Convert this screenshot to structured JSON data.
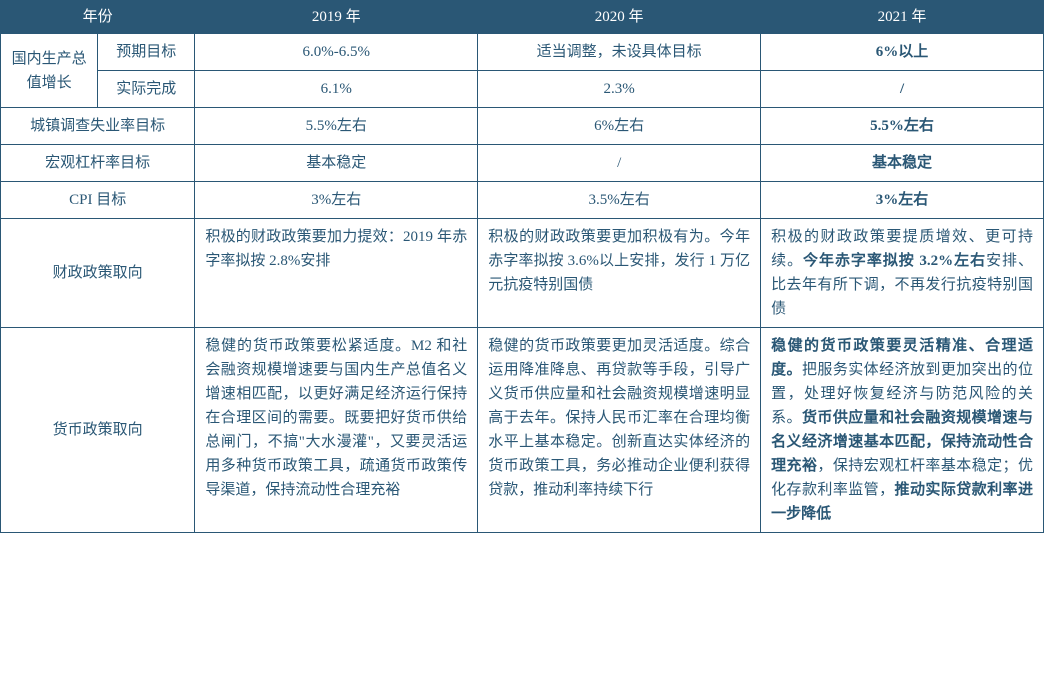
{
  "header": {
    "year_label": "年份",
    "year_2019": "2019 年",
    "year_2020": "2020 年",
    "year_2021": "2021 年"
  },
  "rows": {
    "gdp_label": "国内生产总值增长",
    "gdp_target_label": "预期目标",
    "gdp_actual_label": "实际完成",
    "gdp_target_2019": "6.0%-6.5%",
    "gdp_target_2020": "适当调整，未设具体目标",
    "gdp_target_2021": "6%以上",
    "gdp_actual_2019": "6.1%",
    "gdp_actual_2020": "2.3%",
    "gdp_actual_2021": "/",
    "unemployment_label": "城镇调查失业率目标",
    "unemployment_2019": "5.5%左右",
    "unemployment_2020": "6%左右",
    "unemployment_2021": "5.5%左右",
    "leverage_label": "宏观杠杆率目标",
    "leverage_2019": "基本稳定",
    "leverage_2020": "/",
    "leverage_2021": "基本稳定",
    "cpi_label": "CPI 目标",
    "cpi_2019": "3%左右",
    "cpi_2020": "3.5%左右",
    "cpi_2021": "3%左右",
    "fiscal_label": "财政政策取向",
    "fiscal_2019": "积极的财政政策要加力提效：2019 年赤字率拟按 2.8%安排",
    "fiscal_2020": "积极的财政政策要更加积极有为。今年赤字率拟按 3.6%以上安排，发行 1 万亿元抗疫特别国债",
    "fiscal_2021_p1": "积极的财政政策要提质增效、更可持续。",
    "fiscal_2021_p2": "今年赤字率拟按 3.2%左右",
    "fiscal_2021_p3": "安排、比去年有所下调，不再发行抗疫特别国债",
    "monetary_label": "货币政策取向",
    "monetary_2019": "稳健的货币政策要松紧适度。M2 和社会融资规模增速要与国内生产总值名义增速相匹配，以更好满足经济运行保持在合理区间的需要。既要把好货币供给总闸门，不搞\"大水漫灌\"，又要灵活运用多种货币政策工具，疏通货币政策传导渠道，保持流动性合理充裕",
    "monetary_2020": "稳健的货币政策要更加灵活适度。综合运用降准降息、再贷款等手段，引导广义货币供应量和社会融资规模增速明显高于去年。保持人民币汇率在合理均衡水平上基本稳定。创新直达实体经济的货币政策工具，务必推动企业便利获得贷款，推动利率持续下行",
    "monetary_2021_p1": "稳健的货币政策要灵活精准、合理适度。",
    "monetary_2021_p2": "把服务实体经济放到更加突出的位置，处理好恢复经济与防范风险的关系。",
    "monetary_2021_p3": "货币供应量和社会融资规模增速与名义经济增速基本匹配，保持流动性合理充裕",
    "monetary_2021_p4": "，保持宏观杠杆率基本稳定；优化存款利率监管，",
    "monetary_2021_p5": "推动实际贷款利率进一步降低"
  },
  "style": {
    "header_bg": "#2a5775",
    "header_color": "#ffffff",
    "border_color": "#2a5775",
    "text_color": "#2a5775",
    "font_size": 15
  }
}
